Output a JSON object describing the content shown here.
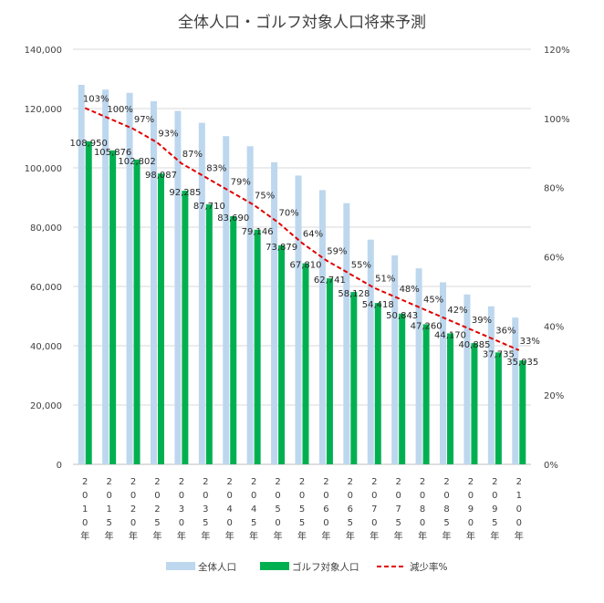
{
  "chart_data": {
    "type": "bar",
    "title": "全体人口・ゴルフ対象人口将来予測",
    "categories": [
      "2010年",
      "2015年",
      "2020年",
      "2025年",
      "2030年",
      "2035年",
      "2040年",
      "2045年",
      "2050年",
      "2055年",
      "2060年",
      "2065年",
      "2070年",
      "2075年",
      "2080年",
      "2085年",
      "2090年",
      "2095年",
      "2100年"
    ],
    "category_chars": [
      [
        "2",
        "0",
        "1",
        "0",
        "年"
      ],
      [
        "2",
        "0",
        "1",
        "5",
        "年"
      ],
      [
        "2",
        "0",
        "2",
        "0",
        "年"
      ],
      [
        "2",
        "0",
        "2",
        "5",
        "年"
      ],
      [
        "2",
        "0",
        "3",
        "0",
        "年"
      ],
      [
        "2",
        "0",
        "3",
        "5",
        "年"
      ],
      [
        "2",
        "0",
        "4",
        "0",
        "年"
      ],
      [
        "2",
        "0",
        "4",
        "5",
        "年"
      ],
      [
        "2",
        "0",
        "5",
        "0",
        "年"
      ],
      [
        "2",
        "0",
        "5",
        "5",
        "年"
      ],
      [
        "2",
        "0",
        "6",
        "0",
        "年"
      ],
      [
        "2",
        "0",
        "6",
        "5",
        "年"
      ],
      [
        "2",
        "0",
        "7",
        "0",
        "年"
      ],
      [
        "2",
        "0",
        "7",
        "5",
        "年"
      ],
      [
        "2",
        "0",
        "8",
        "0",
        "年"
      ],
      [
        "2",
        "0",
        "8",
        "5",
        "年"
      ],
      [
        "2",
        "0",
        "9",
        "0",
        "年"
      ],
      [
        "2",
        "0",
        "9",
        "5",
        "年"
      ],
      [
        "2",
        "1",
        "0",
        "0",
        "年"
      ]
    ],
    "series": [
      {
        "name": "全体人口",
        "axis": "left",
        "color": "#bdd7ee",
        "values": [
          128000,
          126400,
          125300,
          122500,
          119200,
          115200,
          110700,
          107300,
          101900,
          97400,
          92500,
          88100,
          75800,
          70500,
          66100,
          61400,
          57300,
          53300,
          49500
        ]
      },
      {
        "name": "ゴルフ対象人口",
        "axis": "left",
        "color": "#00b050",
        "values": [
          108950,
          105876,
          102802,
          98087,
          92285,
          87710,
          83690,
          79146,
          73879,
          67810,
          62741,
          58128,
          54418,
          50843,
          47260,
          44170,
          40885,
          37735,
          35035
        ],
        "labels": [
          "108,950",
          "105,876",
          "102,802",
          "98,087",
          "92,285",
          "87,710",
          "83,690",
          "79,146",
          "73,879",
          "67,810",
          "62,741",
          "58,128",
          "54,418",
          "50,843",
          "47,260",
          "44,170",
          "40,885",
          "37,735",
          "35,035"
        ]
      },
      {
        "name": "減少率%",
        "axis": "right",
        "type": "line",
        "style": "dashed",
        "color": "#e00000",
        "values": [
          103,
          100,
          97,
          93,
          87,
          83,
          79,
          75,
          70,
          64,
          59,
          55,
          51,
          48,
          45,
          42,
          39,
          36,
          33
        ],
        "labels": [
          "103%",
          "100%",
          "97%",
          "93%",
          "87%",
          "83%",
          "79%",
          "75%",
          "70%",
          "64%",
          "59%",
          "55%",
          "51%",
          "48%",
          "45%",
          "42%",
          "39%",
          "36%",
          "33%"
        ]
      }
    ],
    "y_left": {
      "ylim": [
        0,
        140000
      ],
      "ticks": [
        0,
        20000,
        40000,
        60000,
        80000,
        100000,
        120000,
        140000
      ],
      "tick_labels": [
        "0",
        "20,000",
        "40,000",
        "60,000",
        "80,000",
        "100,000",
        "120,000",
        "140,000"
      ]
    },
    "y_right": {
      "ylim": [
        0,
        120
      ],
      "ticks": [
        0,
        20,
        40,
        60,
        80,
        100,
        120
      ],
      "tick_labels": [
        "0%",
        "20%",
        "40%",
        "60%",
        "80%",
        "100%",
        "120%"
      ]
    },
    "grid": true,
    "legend": {
      "position": "bottom",
      "items": [
        "全体人口",
        "ゴルフ対象人口",
        "減少率%"
      ]
    }
  }
}
